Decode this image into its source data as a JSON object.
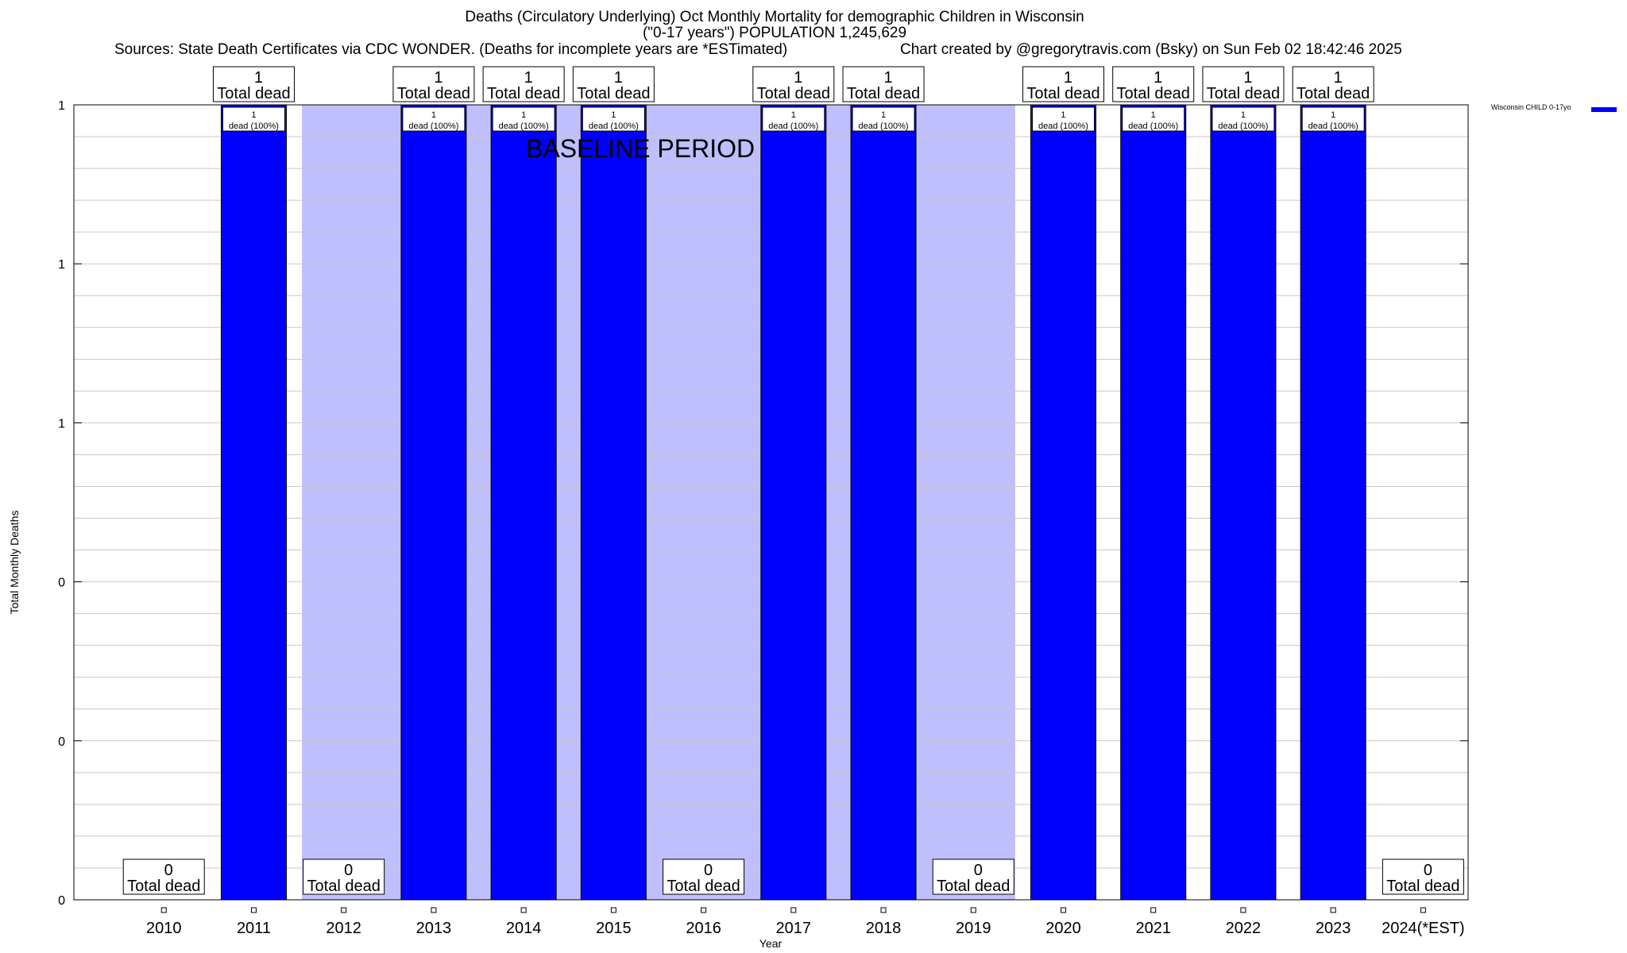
{
  "chart_data": {
    "type": "bar",
    "title": "Deaths (Circulatory Underlying) Oct Monthly Mortality for demographic Children in Wisconsin",
    "subtitle": "(\"0-17 years\") POPULATION 1,245,629",
    "sources": "Sources: State Death Certificates via CDC WONDER. (Deaths for incomplete years are *ESTimated)",
    "credit": "Chart created by @gregorytravis.com (Bsky) on Sun Feb 02 18:42:46 2025",
    "xlabel": "Year",
    "ylabel": "Total Monthly Deaths",
    "ylim": [
      0,
      1
    ],
    "y_tick_values": [
      0,
      0.2,
      0.4,
      0.6,
      0.8,
      1
    ],
    "y_tick_labels": [
      "0",
      "0",
      "0",
      "1",
      "1",
      "1"
    ],
    "categories": [
      "2010",
      "2011",
      "2012",
      "2013",
      "2014",
      "2015",
      "2016",
      "2017",
      "2018",
      "2019",
      "2020",
      "2021",
      "2022",
      "2023",
      "2024(*EST)"
    ],
    "series": [
      {
        "name": "Wisconsin CHILD 0-17yo",
        "color": "#0000ff",
        "values": [
          0,
          1,
          0,
          1,
          1,
          1,
          0,
          1,
          1,
          0,
          1,
          1,
          1,
          1,
          0
        ]
      }
    ],
    "baseline_range": [
      "2012",
      "2019"
    ],
    "baseline_label": "BASELINE PERIOD",
    "baseline_color": "#bfbffd",
    "total_label_word": "Total dead",
    "bar_label_word": "dead (100%)"
  }
}
